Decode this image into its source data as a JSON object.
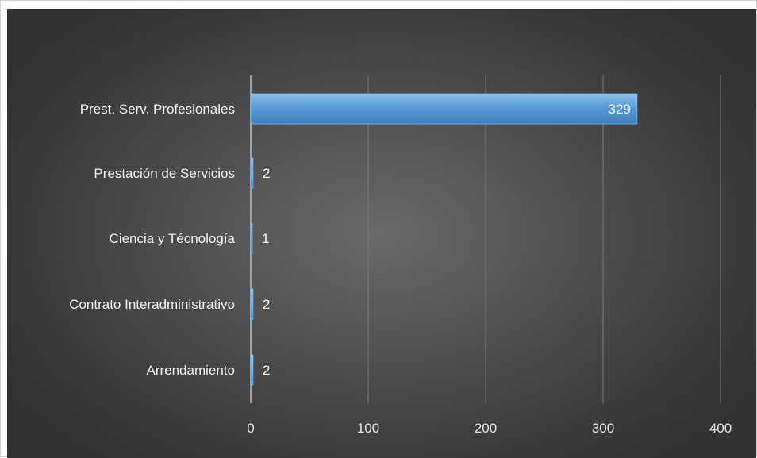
{
  "chart_data": {
    "type": "bar",
    "orientation": "horizontal",
    "categories": [
      "Prest. Serv. Profesionales",
      "Prestación de Servicios",
      "Ciencia y Técnología",
      "Contrato Interadministrativo",
      "Arrendamiento"
    ],
    "values": [
      329,
      2,
      1,
      2,
      2
    ],
    "data_labels": [
      "329",
      "2",
      "1",
      "2",
      "2"
    ],
    "xlim": [
      0,
      400
    ],
    "xticks": [
      0,
      100,
      200,
      300,
      400
    ],
    "xtick_labels": [
      "0",
      "100",
      "200",
      "300",
      "400"
    ],
    "grid": true,
    "colors": {
      "bar": "#5b9bd5",
      "bar_light": "#7fb3e3",
      "grid": "#7a7a7a",
      "axis": "#bdbdbd",
      "label_text": "#f0f0f0"
    }
  }
}
